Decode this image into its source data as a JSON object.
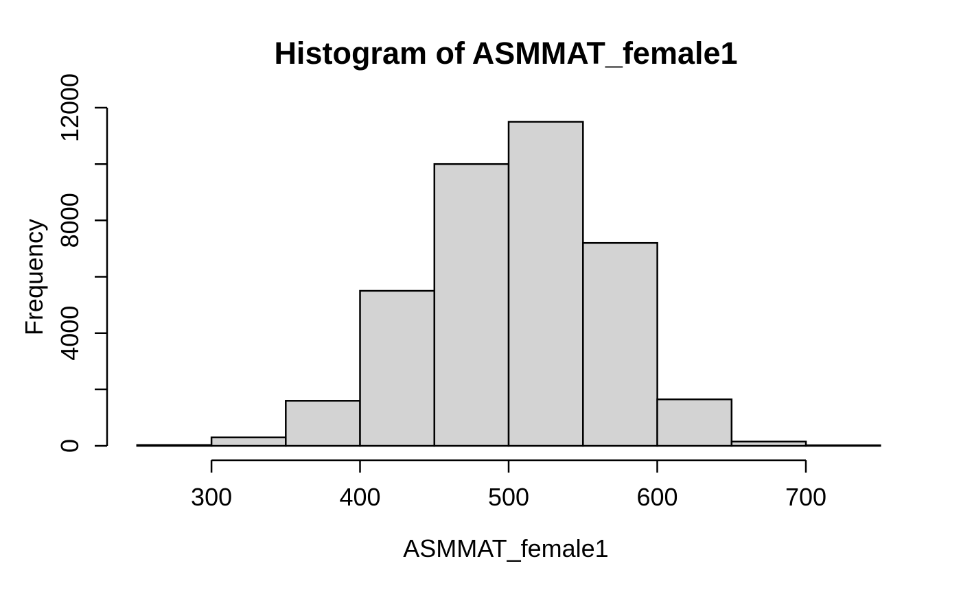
{
  "figure": {
    "kind": "R-base-graphics histogram plot"
  },
  "chart_data": {
    "type": "bar",
    "subtype": "histogram",
    "title": "Histogram of ASMMAT_female1",
    "xlabel": "ASMMAT_female1",
    "ylabel": "Frequency",
    "bin_edges": [
      250,
      300,
      350,
      400,
      450,
      500,
      550,
      600,
      650,
      700,
      750
    ],
    "counts": [
      30,
      300,
      1600,
      5500,
      10000,
      11500,
      7200,
      1650,
      150,
      20
    ],
    "xlim": [
      250,
      750
    ],
    "ylim": [
      0,
      12000
    ],
    "x_ticks": [
      300,
      400,
      500,
      600,
      700
    ],
    "x_tick_labels": [
      "300",
      "400",
      "500",
      "600",
      "700"
    ],
    "y_ticks": [
      0,
      2000,
      4000,
      6000,
      8000,
      10000,
      12000
    ],
    "y_tick_labels": [
      "0",
      "",
      "4000",
      "",
      "8000",
      "",
      "12000"
    ],
    "grid": false,
    "legend": false,
    "colors": {
      "bar_fill": "#d3d3d3",
      "bar_stroke": "#000000",
      "axis": "#000000",
      "text": "#000000",
      "background": "#ffffff"
    }
  }
}
